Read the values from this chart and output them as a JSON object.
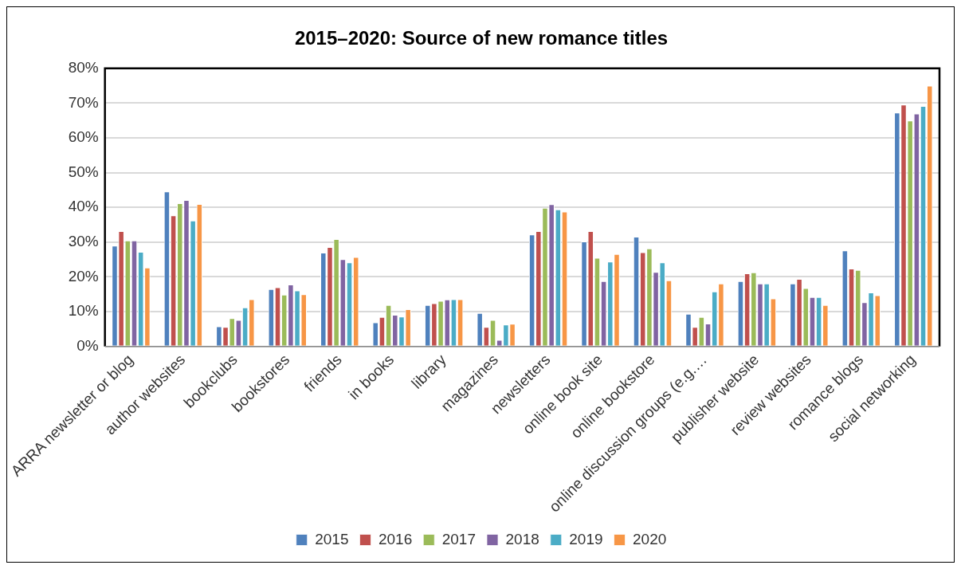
{
  "chart_data": {
    "type": "bar",
    "title": "2015–2020: Source of new romance titles",
    "categories": [
      "ARRA newsletter or blog",
      "author websites",
      "bookclubs",
      "bookstores",
      "friends",
      "in books",
      "library",
      "magazines",
      "newsletters",
      "online book site",
      "online bookstore",
      "online discussion groups (e.g.…",
      "publisher website",
      "review websites",
      "romance blogs",
      "social networking"
    ],
    "series": [
      {
        "name": "2015",
        "color": "#4f81bd",
        "values": [
          29.0,
          44.6,
          5.8,
          16.5,
          27.0,
          6.9,
          11.9,
          9.6,
          32.2,
          30.2,
          31.6,
          9.4,
          18.8,
          18.1,
          27.6,
          67.3
        ]
      },
      {
        "name": "2016",
        "color": "#c0504d",
        "values": [
          33.2,
          37.7,
          5.6,
          17.0,
          28.6,
          8.5,
          12.4,
          5.6,
          33.2,
          33.2,
          27.1,
          5.6,
          21.0,
          19.4,
          22.4,
          69.6
        ]
      },
      {
        "name": "2017",
        "color": "#9bbb59",
        "values": [
          30.5,
          41.2,
          8.1,
          14.9,
          30.9,
          11.9,
          13.1,
          7.6,
          39.9,
          25.5,
          28.2,
          8.5,
          21.3,
          16.8,
          22.0,
          65.0
        ]
      },
      {
        "name": "2018",
        "color": "#8064a2",
        "values": [
          30.5,
          42.1,
          7.6,
          17.8,
          25.1,
          9.1,
          13.5,
          1.9,
          40.9,
          18.8,
          21.4,
          6.6,
          18.1,
          14.2,
          12.7,
          67.0
        ]
      },
      {
        "name": "2019",
        "color": "#4bacc6",
        "values": [
          27.2,
          36.2,
          11.2,
          16.1,
          24.2,
          8.6,
          13.6,
          6.3,
          39.4,
          24.4,
          24.2,
          15.8,
          18.1,
          14.2,
          15.5,
          69.2
        ]
      },
      {
        "name": "2020",
        "color": "#f79646",
        "values": [
          22.7,
          41.0,
          13.6,
          15.0,
          25.7,
          10.7,
          13.6,
          6.5,
          38.8,
          26.6,
          19.0,
          18.1,
          13.8,
          11.9,
          14.7,
          75.0
        ]
      }
    ],
    "ylim": [
      0,
      80
    ],
    "yticks": [
      {
        "value": 0,
        "label": "0%"
      },
      {
        "value": 10,
        "label": "10%"
      },
      {
        "value": 20,
        "label": "20%"
      },
      {
        "value": 30,
        "label": "30%"
      },
      {
        "value": 40,
        "label": "40%"
      },
      {
        "value": 50,
        "label": "50%"
      },
      {
        "value": 60,
        "label": "60%"
      },
      {
        "value": 70,
        "label": "70%"
      },
      {
        "value": 80,
        "label": "80%"
      }
    ],
    "grid": "y",
    "legend": "bottom"
  }
}
